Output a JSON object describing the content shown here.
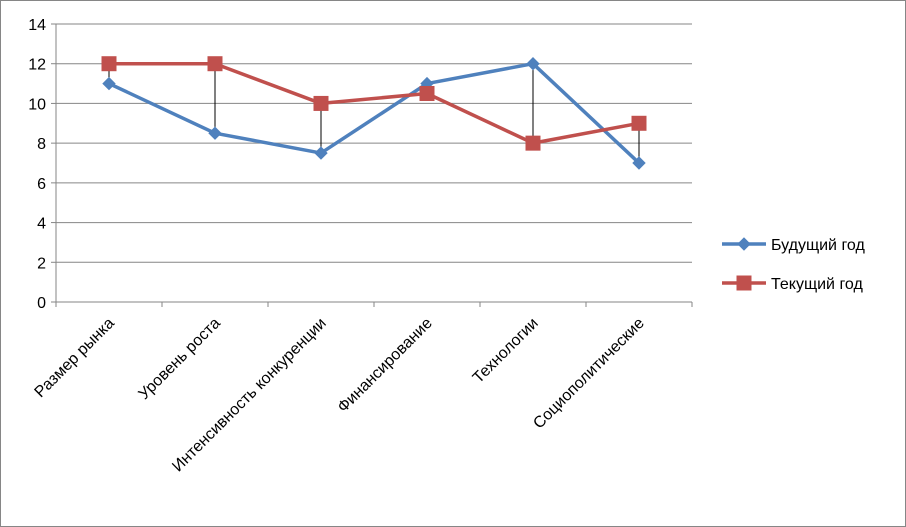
{
  "chart_data": {
    "type": "line",
    "categories": [
      "Размер рынка",
      "Уровень роста",
      "Интенсивность конкуренции",
      "Финансирование",
      "Технологии",
      "Социополитические"
    ],
    "series": [
      {
        "name": "Будущий год",
        "values": [
          11,
          8.5,
          7.5,
          11,
          12,
          7
        ],
        "color": "#4F81BD",
        "marker": "diamond"
      },
      {
        "name": "Текущий год",
        "values": [
          12,
          12,
          10,
          10.5,
          8,
          9
        ],
        "color": "#C0504D",
        "marker": "square"
      }
    ],
    "ylim": [
      0,
      14
    ],
    "yticks": [
      "0",
      "2",
      "4",
      "6",
      "8",
      "10",
      "12",
      "14"
    ],
    "grid": true,
    "legend_position": "right",
    "drop_lines": true
  }
}
